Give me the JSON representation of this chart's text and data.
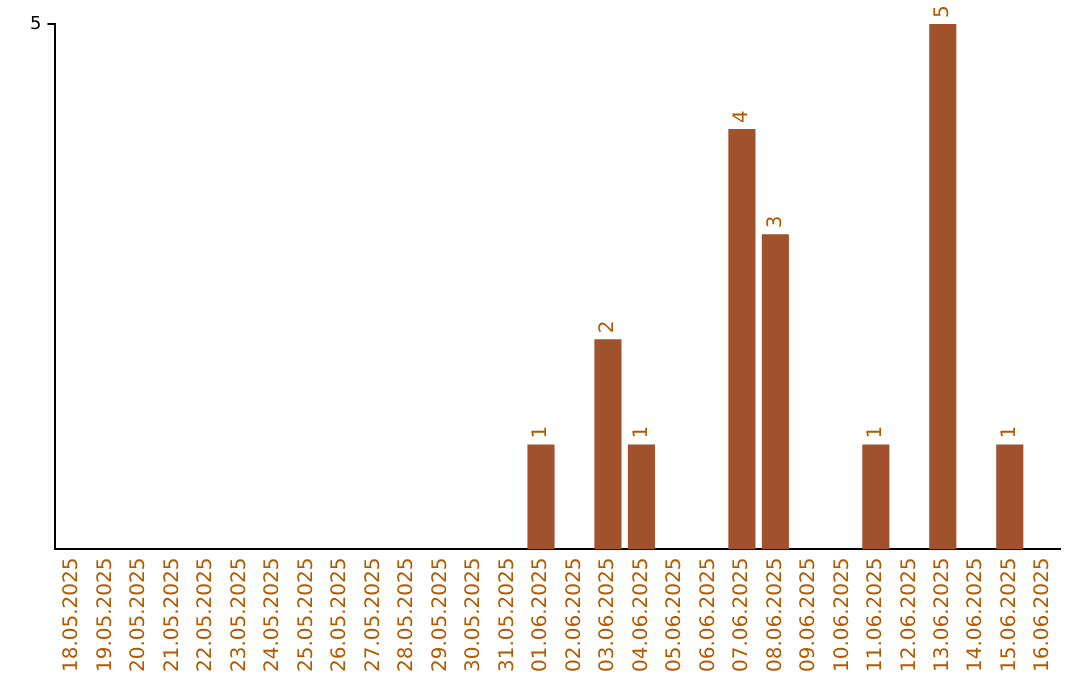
{
  "chart_data": {
    "type": "bar",
    "categories": [
      "18.05.2025",
      "19.05.2025",
      "20.05.2025",
      "21.05.2025",
      "22.05.2025",
      "23.05.2025",
      "24.05.2025",
      "25.05.2025",
      "26.05.2025",
      "27.05.2025",
      "28.05.2025",
      "29.05.2025",
      "30.05.2025",
      "31.05.2025",
      "01.06.2025",
      "02.06.2025",
      "03.06.2025",
      "04.06.2025",
      "05.06.2025",
      "06.06.2025",
      "07.06.2025",
      "08.06.2025",
      "09.06.2025",
      "10.06.2025",
      "11.06.2025",
      "12.06.2025",
      "13.06.2025",
      "14.06.2025",
      "15.06.2025",
      "16.06.2025"
    ],
    "values": [
      null,
      null,
      null,
      null,
      null,
      null,
      null,
      null,
      null,
      null,
      null,
      null,
      null,
      null,
      1,
      null,
      2,
      1,
      null,
      null,
      4,
      3,
      null,
      null,
      1,
      null,
      5,
      null,
      1,
      null
    ],
    "data_labels": true,
    "color": "#a0522d",
    "ylim": [
      0,
      5
    ],
    "yticks": [
      5
    ],
    "legend": false
  }
}
